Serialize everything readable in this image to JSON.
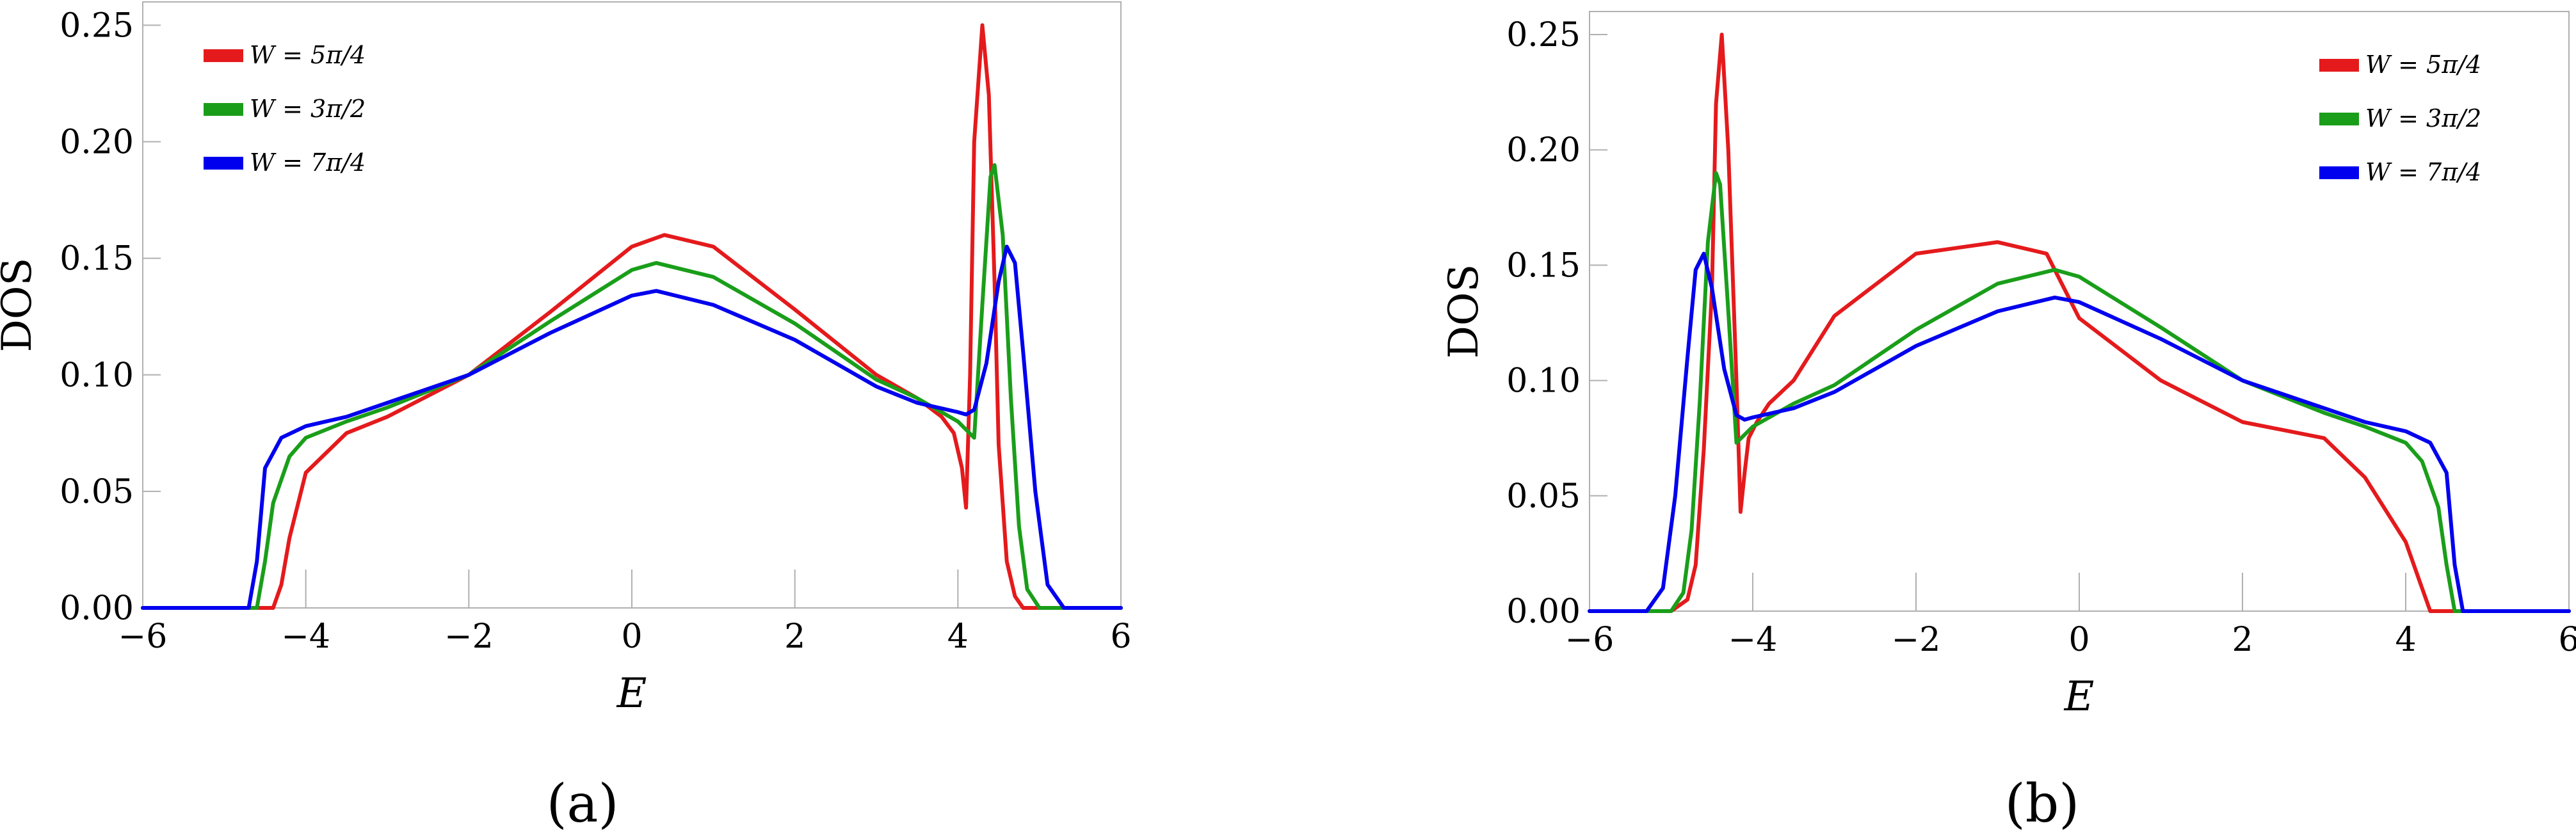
{
  "figure": {
    "panel_labels": [
      "(a)",
      "(b)"
    ]
  },
  "chart_data": [
    {
      "type": "line",
      "panel": "(a)",
      "xlabel": "E",
      "ylabel": "DOS",
      "xlim": [
        -6,
        6
      ],
      "ylim": [
        0,
        0.26
      ],
      "xticks": [
        -6,
        -4,
        -2,
        0,
        2,
        4,
        6
      ],
      "xtick_labels": [
        "−6",
        "−4",
        "−2",
        "0",
        "2",
        "4",
        "6"
      ],
      "yticks": [
        0,
        0.05,
        0.1,
        0.15,
        0.2,
        0.25
      ],
      "ytick_labels": [
        "0.00",
        "0.05",
        "0.10",
        "0.15",
        "0.20",
        "0.25"
      ],
      "grid": false,
      "legend_position": "top-left",
      "series": [
        {
          "name": "W = 5π/4",
          "color": "#e41a1c",
          "x": [
            -6,
            -4.4,
            -4.3,
            -4.2,
            -4.0,
            -3.5,
            -3.0,
            -2.0,
            -1.0,
            0.0,
            0.4,
            1.0,
            2.0,
            3.0,
            3.5,
            3.8,
            3.95,
            4.05,
            4.1,
            4.15,
            4.2,
            4.3,
            4.38,
            4.45,
            4.5,
            4.6,
            4.7,
            4.8,
            5.0,
            6
          ],
          "y": [
            0,
            0,
            0.01,
            0.03,
            0.058,
            0.075,
            0.082,
            0.1,
            0.127,
            0.155,
            0.16,
            0.155,
            0.128,
            0.1,
            0.09,
            0.082,
            0.075,
            0.06,
            0.043,
            0.1,
            0.2,
            0.25,
            0.22,
            0.14,
            0.07,
            0.02,
            0.005,
            0,
            0,
            0
          ]
        },
        {
          "name": "W = 3π/2",
          "color": "#1a9e1a",
          "x": [
            -6,
            -4.6,
            -4.5,
            -4.4,
            -4.2,
            -4.0,
            -3.5,
            -3.0,
            -2.0,
            -1.0,
            0.0,
            0.3,
            1.0,
            2.0,
            3.0,
            3.5,
            4.0,
            4.2,
            4.3,
            4.4,
            4.45,
            4.55,
            4.65,
            4.75,
            4.85,
            5.0,
            6
          ],
          "y": [
            0,
            0,
            0.02,
            0.045,
            0.065,
            0.073,
            0.08,
            0.086,
            0.1,
            0.123,
            0.145,
            0.148,
            0.142,
            0.122,
            0.098,
            0.09,
            0.08,
            0.073,
            0.13,
            0.185,
            0.19,
            0.16,
            0.09,
            0.035,
            0.008,
            0,
            0
          ]
        },
        {
          "name": "W = 7π/4",
          "color": "#0000ee",
          "x": [
            -6,
            -4.7,
            -4.6,
            -4.5,
            -4.3,
            -4.0,
            -3.5,
            -3.0,
            -2.0,
            -1.0,
            0.0,
            0.3,
            1.0,
            2.0,
            3.0,
            3.5,
            4.0,
            4.1,
            4.2,
            4.35,
            4.5,
            4.6,
            4.7,
            4.8,
            4.95,
            5.1,
            5.3,
            6
          ],
          "y": [
            0,
            0,
            0.02,
            0.06,
            0.073,
            0.078,
            0.082,
            0.088,
            0.1,
            0.118,
            0.134,
            0.136,
            0.13,
            0.115,
            0.095,
            0.088,
            0.084,
            0.083,
            0.085,
            0.105,
            0.14,
            0.155,
            0.148,
            0.11,
            0.05,
            0.01,
            0,
            0
          ]
        }
      ]
    },
    {
      "type": "line",
      "panel": "(b)",
      "xlabel": "E",
      "ylabel": "DOS",
      "xlim": [
        -6,
        6
      ],
      "ylim": [
        0,
        0.26
      ],
      "xticks": [
        -6,
        -4,
        -2,
        0,
        2,
        4,
        6
      ],
      "xtick_labels": [
        "−6",
        "−4",
        "−2",
        "0",
        "2",
        "4",
        "6"
      ],
      "yticks": [
        0,
        0.05,
        0.1,
        0.15,
        0.2,
        0.25
      ],
      "ytick_labels": [
        "0.00",
        "0.05",
        "0.10",
        "0.15",
        "0.20",
        "0.25"
      ],
      "grid": false,
      "legend_position": "top-right",
      "series": [
        {
          "name": "W = 5π/4",
          "color": "#e41a1c",
          "x": [
            -6,
            -5.0,
            -4.8,
            -4.7,
            -4.6,
            -4.5,
            -4.45,
            -4.38,
            -4.3,
            -4.2,
            -4.15,
            -4.1,
            -4.05,
            -3.95,
            -3.8,
            -3.5,
            -3.0,
            -2.0,
            -1.0,
            -0.4,
            0.0,
            1.0,
            2.0,
            3.0,
            3.5,
            4.0,
            4.2,
            4.3,
            4.4,
            6
          ],
          "y": [
            0,
            0,
            0.005,
            0.02,
            0.07,
            0.14,
            0.22,
            0.25,
            0.2,
            0.1,
            0.043,
            0.06,
            0.075,
            0.082,
            0.09,
            0.1,
            0.128,
            0.155,
            0.16,
            0.155,
            0.127,
            0.1,
            0.082,
            0.075,
            0.058,
            0.03,
            0.01,
            0,
            0,
            0
          ]
        },
        {
          "name": "W = 3π/2",
          "color": "#1a9e1a",
          "x": [
            -6,
            -5.0,
            -4.85,
            -4.75,
            -4.65,
            -4.55,
            -4.45,
            -4.4,
            -4.3,
            -4.2,
            -4.0,
            -3.5,
            -3.0,
            -2.0,
            -1.0,
            -0.3,
            0.0,
            1.0,
            2.0,
            3.0,
            3.5,
            4.0,
            4.2,
            4.4,
            4.5,
            4.6,
            6
          ],
          "y": [
            0,
            0,
            0.008,
            0.035,
            0.09,
            0.16,
            0.19,
            0.185,
            0.13,
            0.073,
            0.08,
            0.09,
            0.098,
            0.122,
            0.142,
            0.148,
            0.145,
            0.123,
            0.1,
            0.086,
            0.08,
            0.073,
            0.065,
            0.045,
            0.02,
            0,
            0
          ]
        },
        {
          "name": "W = 7π/4",
          "color": "#0000ee",
          "x": [
            -6,
            -5.3,
            -5.1,
            -4.95,
            -4.8,
            -4.7,
            -4.6,
            -4.5,
            -4.35,
            -4.2,
            -4.1,
            -4.0,
            -3.5,
            -3.0,
            -2.0,
            -1.0,
            -0.3,
            0.0,
            1.0,
            2.0,
            3.0,
            3.5,
            4.0,
            4.3,
            4.5,
            4.6,
            4.7,
            6
          ],
          "y": [
            0,
            0,
            0.01,
            0.05,
            0.11,
            0.148,
            0.155,
            0.14,
            0.105,
            0.085,
            0.083,
            0.084,
            0.088,
            0.095,
            0.115,
            0.13,
            0.136,
            0.134,
            0.118,
            0.1,
            0.088,
            0.082,
            0.078,
            0.073,
            0.06,
            0.02,
            0,
            0
          ]
        }
      ]
    }
  ]
}
